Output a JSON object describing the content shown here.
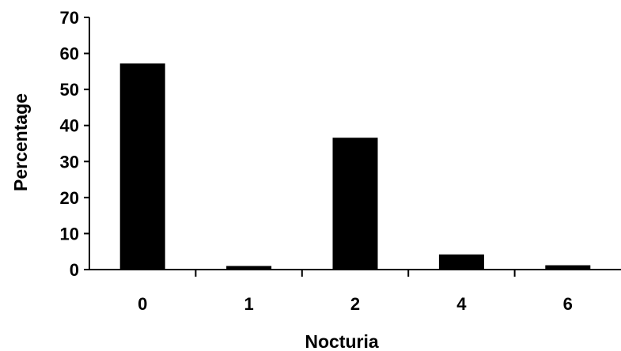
{
  "chart_data": {
    "type": "bar",
    "categories": [
      "0",
      "1",
      "2",
      "4",
      "6"
    ],
    "values": [
      57.2,
      1.0,
      36.6,
      4.2,
      1.2
    ],
    "title": "",
    "xlabel": "Nocturia",
    "ylabel": "Percentage",
    "ylim": [
      0,
      70
    ],
    "yticks": [
      "0",
      "10",
      "20",
      "30",
      "40",
      "50",
      "60",
      "70"
    ],
    "grid": false,
    "bar_color": "#000000"
  }
}
